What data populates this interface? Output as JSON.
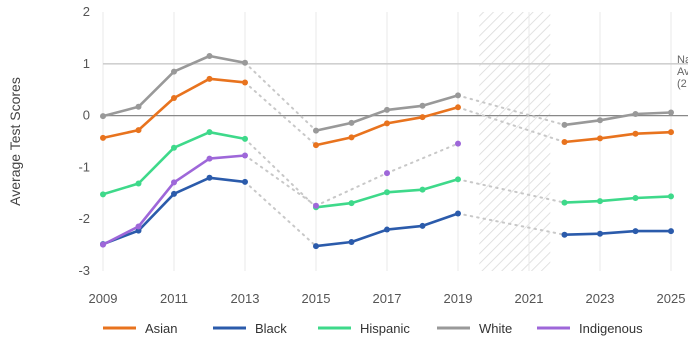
{
  "chart_data": {
    "type": "line",
    "ylabel": "Average Test Scores",
    "xlabel": "",
    "xlim": [
      2009,
      2025
    ],
    "ylim": [
      -3,
      2
    ],
    "x_ticks": [
      "2009",
      "2011",
      "2013",
      "2015",
      "2017",
      "2019",
      "2021",
      "2023",
      "2025"
    ],
    "y_ticks": [
      "2",
      "1",
      "0",
      "-1",
      "-2",
      "-3"
    ],
    "reference_lines": [
      {
        "y": 1,
        "color": "#d0d0d0"
      },
      {
        "y": 0,
        "color": "#888888"
      }
    ],
    "annotation_lines": [
      "Na",
      "Av",
      "(2"
    ],
    "hatched_region": {
      "from": 2019.6,
      "to": 2021.6
    },
    "series": [
      {
        "name": "Asian",
        "color": "#e8731e",
        "segments": [
          [
            [
              2009,
              -0.43
            ],
            [
              2010,
              -0.28
            ],
            [
              2011,
              0.34
            ],
            [
              2012,
              0.71
            ],
            [
              2013,
              0.64
            ]
          ],
          [
            [
              2015,
              -0.57
            ],
            [
              2016,
              -0.42
            ],
            [
              2017,
              -0.15
            ],
            [
              2018,
              -0.03
            ],
            [
              2019,
              0.16
            ]
          ],
          [
            [
              2022,
              -0.51
            ],
            [
              2023,
              -0.44
            ],
            [
              2024,
              -0.35
            ],
            [
              2025,
              -0.32
            ]
          ]
        ],
        "gap_links": [
          [
            [
              2013,
              0.64
            ],
            [
              2015,
              -0.57
            ]
          ],
          [
            [
              2019,
              0.16
            ],
            [
              2022,
              -0.51
            ]
          ]
        ]
      },
      {
        "name": "Black",
        "color": "#2b5bab",
        "segments": [
          [
            [
              2009,
              -2.48
            ],
            [
              2010,
              -2.22
            ],
            [
              2011,
              -1.51
            ],
            [
              2012,
              -1.2
            ],
            [
              2013,
              -1.28
            ]
          ],
          [
            [
              2015,
              -2.52
            ],
            [
              2016,
              -2.44
            ],
            [
              2017,
              -2.2
            ],
            [
              2018,
              -2.13
            ],
            [
              2019,
              -1.89
            ]
          ],
          [
            [
              2022,
              -2.3
            ],
            [
              2023,
              -2.28
            ],
            [
              2024,
              -2.23
            ],
            [
              2025,
              -2.23
            ]
          ]
        ],
        "gap_links": [
          [
            [
              2013,
              -1.28
            ],
            [
              2015,
              -2.52
            ]
          ],
          [
            [
              2019,
              -1.89
            ],
            [
              2022,
              -2.3
            ]
          ]
        ]
      },
      {
        "name": "Hispanic",
        "color": "#3ed98a",
        "segments": [
          [
            [
              2009,
              -1.52
            ],
            [
              2010,
              -1.31
            ],
            [
              2011,
              -0.62
            ],
            [
              2012,
              -0.32
            ],
            [
              2013,
              -0.45
            ]
          ],
          [
            [
              2015,
              -1.77
            ],
            [
              2016,
              -1.69
            ],
            [
              2017,
              -1.48
            ],
            [
              2018,
              -1.43
            ],
            [
              2019,
              -1.23
            ]
          ],
          [
            [
              2022,
              -1.68
            ],
            [
              2023,
              -1.65
            ],
            [
              2024,
              -1.59
            ],
            [
              2025,
              -1.56
            ]
          ]
        ],
        "gap_links": [
          [
            [
              2013,
              -0.45
            ],
            [
              2015,
              -1.77
            ]
          ],
          [
            [
              2019,
              -1.23
            ],
            [
              2022,
              -1.68
            ]
          ]
        ]
      },
      {
        "name": "White",
        "color": "#999999",
        "segments": [
          [
            [
              2009,
              -0.01
            ],
            [
              2010,
              0.17
            ],
            [
              2011,
              0.85
            ],
            [
              2012,
              1.15
            ],
            [
              2013,
              1.02
            ]
          ],
          [
            [
              2015,
              -0.29
            ],
            [
              2016,
              -0.14
            ],
            [
              2017,
              0.11
            ],
            [
              2018,
              0.19
            ],
            [
              2019,
              0.39
            ]
          ],
          [
            [
              2022,
              -0.18
            ],
            [
              2023,
              -0.09
            ],
            [
              2024,
              0.03
            ],
            [
              2025,
              0.06
            ]
          ]
        ],
        "gap_links": [
          [
            [
              2013,
              1.02
            ],
            [
              2015,
              -0.29
            ]
          ],
          [
            [
              2019,
              0.39
            ],
            [
              2022,
              -0.18
            ]
          ]
        ]
      },
      {
        "name": "Indigenous",
        "color": "#9e67d9",
        "segments": [
          [
            [
              2009,
              -2.49
            ],
            [
              2010,
              -2.14
            ],
            [
              2011,
              -1.29
            ],
            [
              2012,
              -0.83
            ],
            [
              2013,
              -0.77
            ]
          ],
          [
            [
              2015,
              -1.74
            ]
          ],
          [
            [
              2017,
              -1.11
            ]
          ],
          [
            [
              2019,
              -0.54
            ]
          ]
        ],
        "gap_links": [
          [
            [
              2013,
              -0.77
            ],
            [
              2015,
              -1.74
            ]
          ],
          [
            [
              2015,
              -1.74
            ],
            [
              2017,
              -1.11
            ]
          ],
          [
            [
              2017,
              -1.11
            ],
            [
              2019,
              -0.54
            ]
          ]
        ]
      }
    ]
  }
}
